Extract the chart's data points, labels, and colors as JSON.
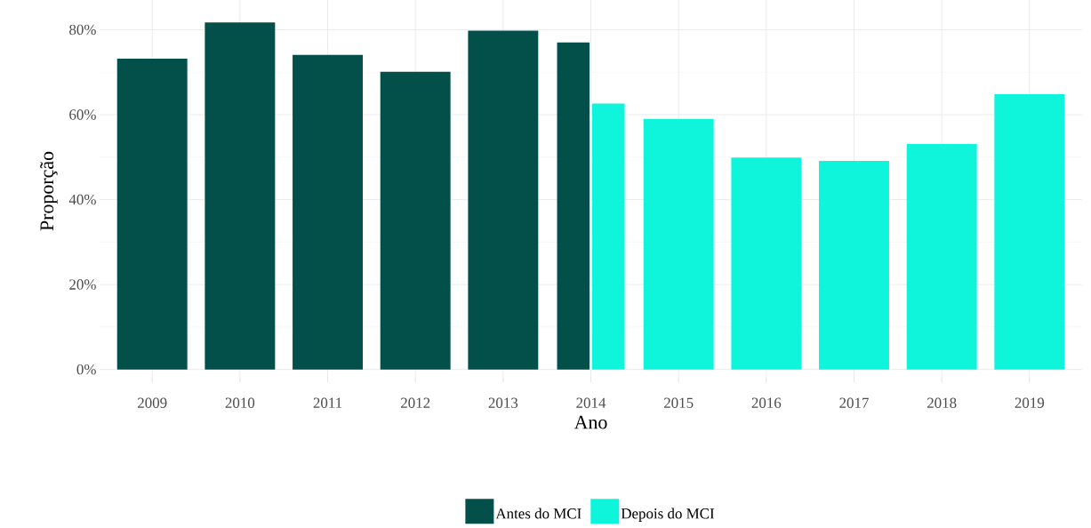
{
  "chart_data": {
    "type": "bar",
    "xlabel": "Ano",
    "ylabel": "Proporção",
    "categories": [
      "2009",
      "2010",
      "2011",
      "2012",
      "2013",
      "2014",
      "2015",
      "2016",
      "2017",
      "2018",
      "2019"
    ],
    "series": [
      {
        "name": "Antes do MCI",
        "color": "#03504a",
        "values": [
          73.2,
          81.7,
          74.1,
          70.1,
          79.8,
          77.0,
          null,
          null,
          null,
          null,
          null
        ]
      },
      {
        "name": "Depois do MCI",
        "color": "#0ff5dc",
        "values": [
          null,
          null,
          null,
          null,
          null,
          62.6,
          59.0,
          49.9,
          49.1,
          53.1,
          64.8
        ]
      }
    ],
    "ylim": [
      -3,
      87
    ],
    "yticks": [
      {
        "value": 0,
        "label": "0%"
      },
      {
        "value": 20,
        "label": "20%"
      },
      {
        "value": 40,
        "label": "40%"
      },
      {
        "value": 60,
        "label": "60%"
      },
      {
        "value": 80,
        "label": "80%"
      }
    ],
    "grid": true,
    "legend": "bottom"
  }
}
